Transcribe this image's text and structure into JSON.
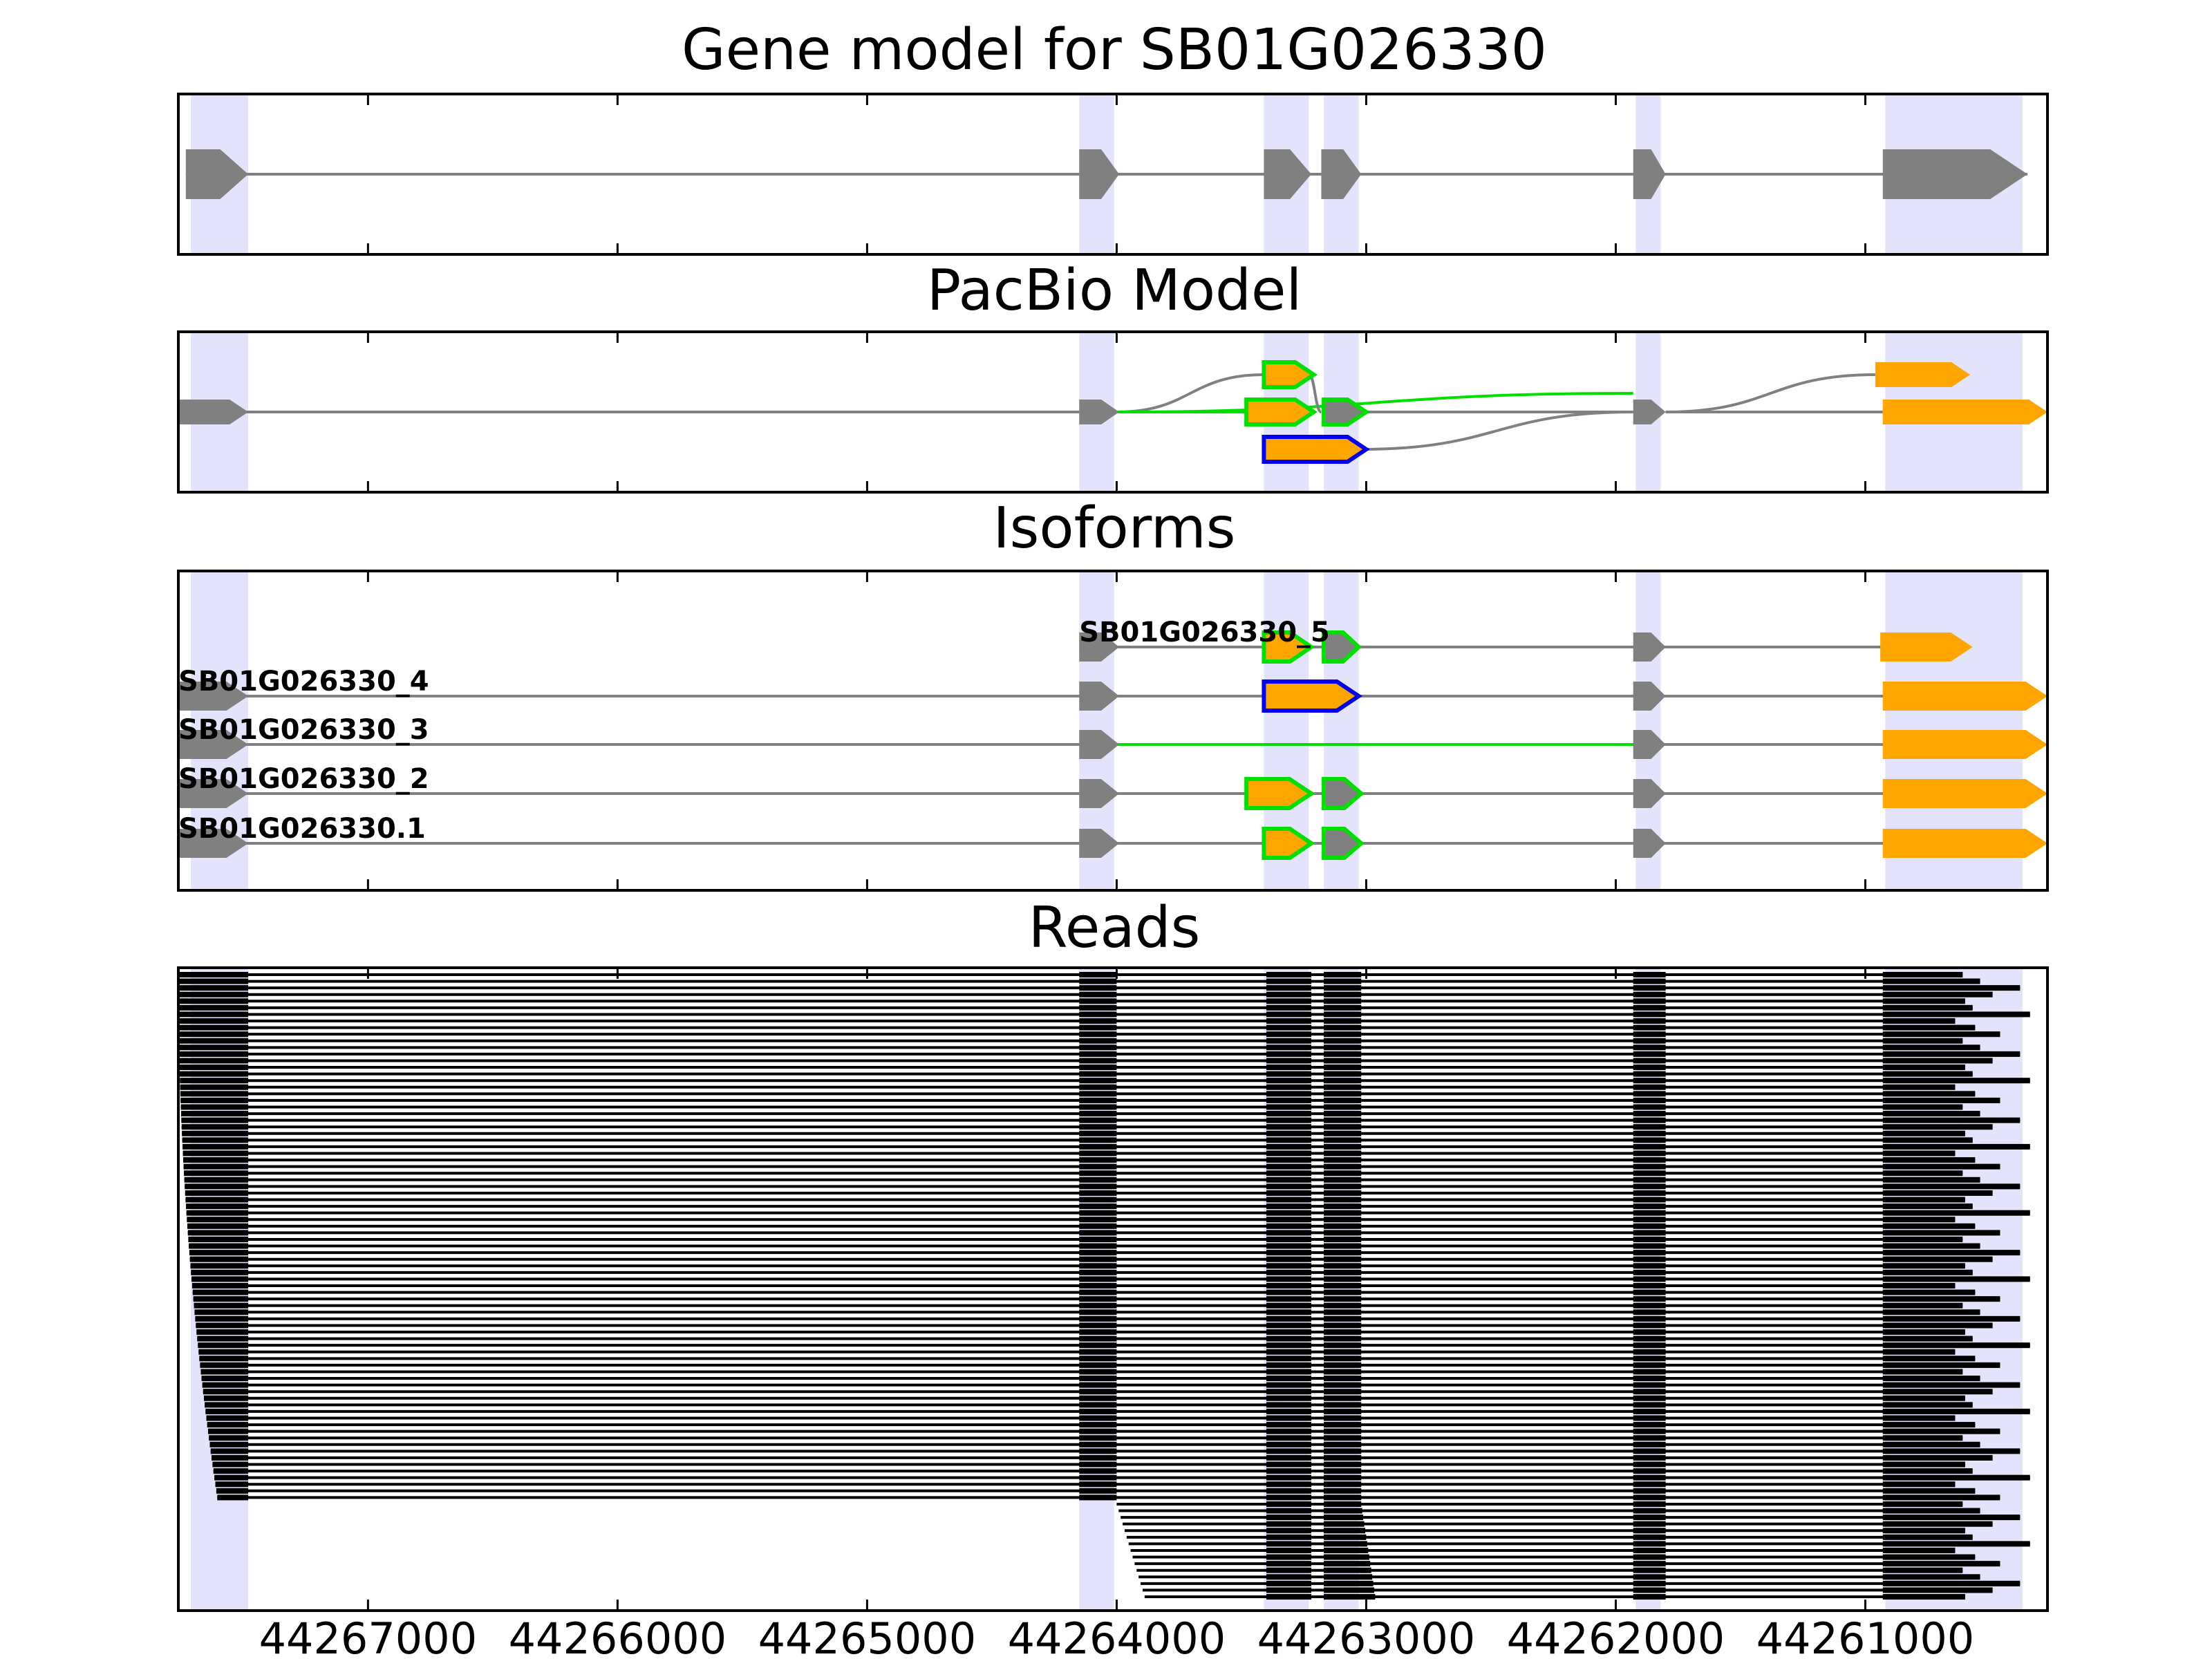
{
  "colors": {
    "band": "#e3e4fb",
    "intron": "#808080",
    "exon_gray": "#808080",
    "exon_orange": "#ffa500",
    "outline_green": "#00e000",
    "outline_blue": "#0000ee",
    "read": "#000000"
  },
  "chart_data": {
    "type": "gene-track",
    "x_axis": {
      "reversed": true,
      "xlim": [
        44267760,
        44260270
      ],
      "ticks": [
        44267000,
        44266000,
        44265000,
        44264000,
        44263000,
        44262000,
        44261000
      ],
      "tick_labels": [
        "44267000",
        "44266000",
        "44265000",
        "44264000",
        "44263000",
        "44262000",
        "44261000"
      ]
    },
    "exon_bands": [
      [
        44267710,
        44267480
      ],
      [
        44264150,
        44264010
      ],
      [
        44263410,
        44263230
      ],
      [
        44263170,
        44263030
      ],
      [
        44261920,
        44261820
      ],
      [
        44260920,
        44260370
      ]
    ],
    "panels": {
      "gene_model": {
        "title": "Gene model for SB01G026330",
        "exons": [
          [
            44267730,
            44267480
          ],
          [
            44264150,
            44263990
          ],
          [
            44263410,
            44263220
          ],
          [
            44263180,
            44263020
          ],
          [
            44261930,
            44261800
          ],
          [
            44260930,
            44260350
          ]
        ]
      },
      "pacbio": {
        "title": "PacBio Model",
        "paths": [
          {
            "from": 44264000,
            "to": 44263410,
            "lane_from": 0,
            "lane_to": 1,
            "color": "intron"
          },
          {
            "from": 44264000,
            "to": 44263480,
            "lane_from": 0,
            "lane_to": 0,
            "color": "outline_green"
          },
          {
            "from": 44264000,
            "to": 44261930,
            "lane_from": 0,
            "lane_to": 0.5,
            "color": "outline_green"
          },
          {
            "from": 44263230,
            "to": 44263180,
            "lane_from": 1,
            "lane_to": 0,
            "color": "intron"
          },
          {
            "from": 44263020,
            "to": 44261930,
            "lane_from": -1,
            "lane_to": 0,
            "color": "intron"
          },
          {
            "from": 44261800,
            "to": 44260960,
            "lane_from": 0,
            "lane_to": 1,
            "color": "intron"
          },
          {
            "from": 44267760,
            "to": 44264150,
            "lane_from": 0,
            "lane_to": 0,
            "color": "intron"
          },
          {
            "from": 44263020,
            "to": 44261930,
            "lane_from": 0,
            "lane_to": 0,
            "color": "intron"
          },
          {
            "from": 44261800,
            "to": 44260930,
            "lane_from": 0,
            "lane_to": 0,
            "color": "intron"
          }
        ],
        "exons": [
          {
            "s": 44267760,
            "e": 44267480,
            "lane": 0,
            "fill": "exon_gray"
          },
          {
            "s": 44264150,
            "e": 44263990,
            "lane": 0,
            "fill": "exon_gray"
          },
          {
            "s": 44263410,
            "e": 44263210,
            "lane": 1,
            "fill": "exon_orange",
            "stroke": "outline_green"
          },
          {
            "s": 44263480,
            "e": 44263210,
            "lane": 0,
            "fill": "exon_orange",
            "stroke": "outline_green"
          },
          {
            "s": 44263170,
            "e": 44263000,
            "lane": 0,
            "fill": "exon_gray",
            "stroke": "outline_green"
          },
          {
            "s": 44263410,
            "e": 44263000,
            "lane": -1,
            "fill": "exon_orange",
            "stroke": "outline_blue"
          },
          {
            "s": 44261930,
            "e": 44261800,
            "lane": 0,
            "fill": "exon_gray"
          },
          {
            "s": 44260960,
            "e": 44260580,
            "lane": 1,
            "fill": "exon_orange"
          },
          {
            "s": 44260930,
            "e": 44260270,
            "lane": 0,
            "fill": "exon_orange"
          }
        ]
      },
      "isoforms": {
        "title": "Isoforms",
        "rows": [
          {
            "name": "SB01G026330_5",
            "label_x": 44264150,
            "intron_color": "intron",
            "span": [
              44264150,
              44260600
            ],
            "exons": [
              {
                "s": 44264150,
                "e": 44263990,
                "fill": "exon_gray"
              },
              {
                "s": 44263410,
                "e": 44263220,
                "fill": "exon_orange",
                "stroke": "outline_green"
              },
              {
                "s": 44263170,
                "e": 44263030,
                "fill": "exon_gray",
                "stroke": "outline_green"
              },
              {
                "s": 44261930,
                "e": 44261800,
                "fill": "exon_gray"
              },
              {
                "s": 44260940,
                "e": 44260570,
                "fill": "exon_orange"
              }
            ]
          },
          {
            "name": "SB01G026330_4",
            "label_x": 44267760,
            "intron_color": "intron",
            "span": [
              44267760,
              44260280
            ],
            "exons": [
              {
                "s": 44267760,
                "e": 44267480,
                "fill": "exon_gray"
              },
              {
                "s": 44264150,
                "e": 44263990,
                "fill": "exon_gray"
              },
              {
                "s": 44263410,
                "e": 44263030,
                "fill": "exon_orange",
                "stroke": "outline_blue"
              },
              {
                "s": 44261930,
                "e": 44261800,
                "fill": "exon_gray"
              },
              {
                "s": 44260930,
                "e": 44260270,
                "fill": "exon_orange"
              }
            ]
          },
          {
            "name": "SB01G026330_3",
            "label_x": 44267760,
            "intron_color": "intron",
            "span": [
              44267760,
              44260280
            ],
            "green_intron": [
              44264000,
              44261930
            ],
            "exons": [
              {
                "s": 44267760,
                "e": 44267480,
                "fill": "exon_gray"
              },
              {
                "s": 44264150,
                "e": 44263990,
                "fill": "exon_gray"
              },
              {
                "s": 44261930,
                "e": 44261800,
                "fill": "exon_gray"
              },
              {
                "s": 44260930,
                "e": 44260270,
                "fill": "exon_orange"
              }
            ]
          },
          {
            "name": "SB01G026330_2",
            "label_x": 44267760,
            "intron_color": "intron",
            "span": [
              44267760,
              44260280
            ],
            "exons": [
              {
                "s": 44267760,
                "e": 44267480,
                "fill": "exon_gray"
              },
              {
                "s": 44264150,
                "e": 44263990,
                "fill": "exon_gray"
              },
              {
                "s": 44263480,
                "e": 44263220,
                "fill": "exon_orange",
                "stroke": "outline_green"
              },
              {
                "s": 44263170,
                "e": 44263020,
                "fill": "exon_gray",
                "stroke": "outline_green"
              },
              {
                "s": 44261930,
                "e": 44261800,
                "fill": "exon_gray"
              },
              {
                "s": 44260930,
                "e": 44260270,
                "fill": "exon_orange"
              }
            ]
          },
          {
            "name": "SB01G026330.1",
            "label_x": 44267760,
            "intron_color": "intron",
            "span": [
              44267760,
              44260280
            ],
            "exons": [
              {
                "s": 44267760,
                "e": 44267480,
                "fill": "exon_gray"
              },
              {
                "s": 44264150,
                "e": 44263990,
                "fill": "exon_gray"
              },
              {
                "s": 44263410,
                "e": 44263220,
                "fill": "exon_orange",
                "stroke": "outline_green"
              },
              {
                "s": 44263170,
                "e": 44263020,
                "fill": "exon_gray",
                "stroke": "outline_green"
              },
              {
                "s": 44261930,
                "e": 44261800,
                "fill": "exon_gray"
              },
              {
                "s": 44260930,
                "e": 44260270,
                "fill": "exon_orange"
              }
            ]
          }
        ]
      },
      "reads": {
        "title": "Reads",
        "read_count": 95,
        "full_length_reads": 80,
        "ylim": [
          0,
          100
        ],
        "exon_blocks": [
          [
            44264150,
            44264000
          ],
          [
            44263400,
            44263220
          ],
          [
            44263170,
            44263020
          ],
          [
            44261930,
            44261800
          ]
        ],
        "first_exon_start_max": 44267760,
        "first_exon_start_min": 44267600,
        "first_exon_end": 44267480,
        "last_exon_start": 44260930,
        "last_exon_end_values": [
          44260610,
          44260540,
          44260380,
          44260490,
          44260600,
          44260570,
          44260340,
          44260640,
          44260560,
          44260460
        ]
      }
    }
  }
}
